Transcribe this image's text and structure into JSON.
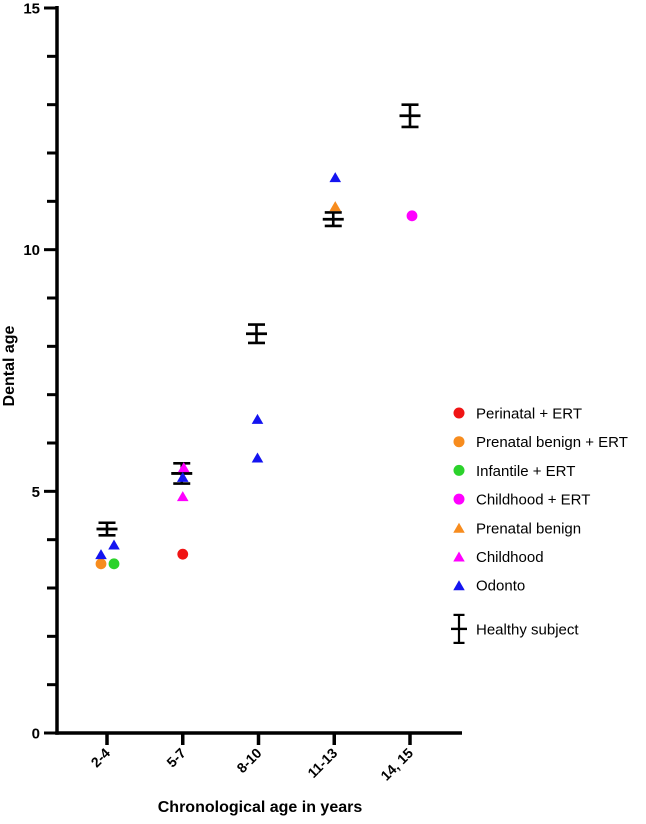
{
  "chart_data": {
    "type": "scatter",
    "title": "",
    "xlabel": "Chronological age in years",
    "ylabel": "Dental age",
    "categories": [
      "2-4",
      "5-7",
      "8-10",
      "11-13",
      "14, 15"
    ],
    "ylim": [
      0,
      15
    ],
    "ytick_major": [
      0,
      5,
      10,
      15
    ],
    "ytick_minor_step": 1,
    "grid": "off",
    "legend_position": "right-center",
    "colors": {
      "red": "#F01414",
      "orange": "#F78C1E",
      "green": "#2BD22B",
      "magenta": "#FF00FF",
      "blue": "#1414F0",
      "black": "#000000"
    },
    "series": [
      {
        "name": "Perinatal + ERT",
        "marker": "circle",
        "color_key": "red",
        "points": [
          {
            "cat": "5-7",
            "y": 3.7,
            "dx": 0
          }
        ]
      },
      {
        "name": "Prenatal benign + ERT",
        "marker": "circle",
        "color_key": "orange",
        "points": [
          {
            "cat": "2-4",
            "y": 3.5,
            "dx": -6
          }
        ]
      },
      {
        "name": "Infantile + ERT",
        "marker": "circle",
        "color_key": "green",
        "points": [
          {
            "cat": "2-4",
            "y": 3.5,
            "dx": 7
          }
        ]
      },
      {
        "name": "Childhood + ERT",
        "marker": "circle",
        "color_key": "magenta",
        "points": [
          {
            "cat": "14, 15",
            "y": 10.7,
            "dx": 2
          }
        ]
      },
      {
        "name": "Prenatal benign",
        "marker": "triangle",
        "color_key": "orange",
        "points": [
          {
            "cat": "11-13",
            "y": 10.9,
            "dx": 1
          }
        ]
      },
      {
        "name": "Childhood",
        "marker": "triangle",
        "color_key": "magenta",
        "points": [
          {
            "cat": "5-7",
            "y": 5.5,
            "dx": 1
          },
          {
            "cat": "5-7",
            "y": 4.9,
            "dx": 0
          }
        ]
      },
      {
        "name": "Odonto",
        "marker": "triangle",
        "color_key": "blue",
        "points": [
          {
            "cat": "2-4",
            "y": 3.9,
            "dx": 7
          },
          {
            "cat": "2-4",
            "y": 3.7,
            "dx": -6
          },
          {
            "cat": "5-7",
            "y": 5.3,
            "dx": 0
          },
          {
            "cat": "8-10",
            "y": 6.5,
            "dx": -1
          },
          {
            "cat": "8-10",
            "y": 5.7,
            "dx": -1
          },
          {
            "cat": "11-13",
            "y": 11.5,
            "dx": 1
          }
        ]
      },
      {
        "name": "Healthy subject",
        "marker": "errorbar",
        "color_key": "black",
        "points": [
          {
            "cat": "2-4",
            "y": 4.22,
            "err": 0.13,
            "dx": 0
          },
          {
            "cat": "5-7",
            "y": 5.37,
            "err": 0.21,
            "dx": -1
          },
          {
            "cat": "8-10",
            "y": 8.26,
            "err": 0.19,
            "dx": -2
          },
          {
            "cat": "11-13",
            "y": 10.63,
            "err": 0.14,
            "dx": -1
          },
          {
            "cat": "14, 15",
            "y": 12.77,
            "err": 0.23,
            "dx": 0
          }
        ]
      }
    ]
  }
}
